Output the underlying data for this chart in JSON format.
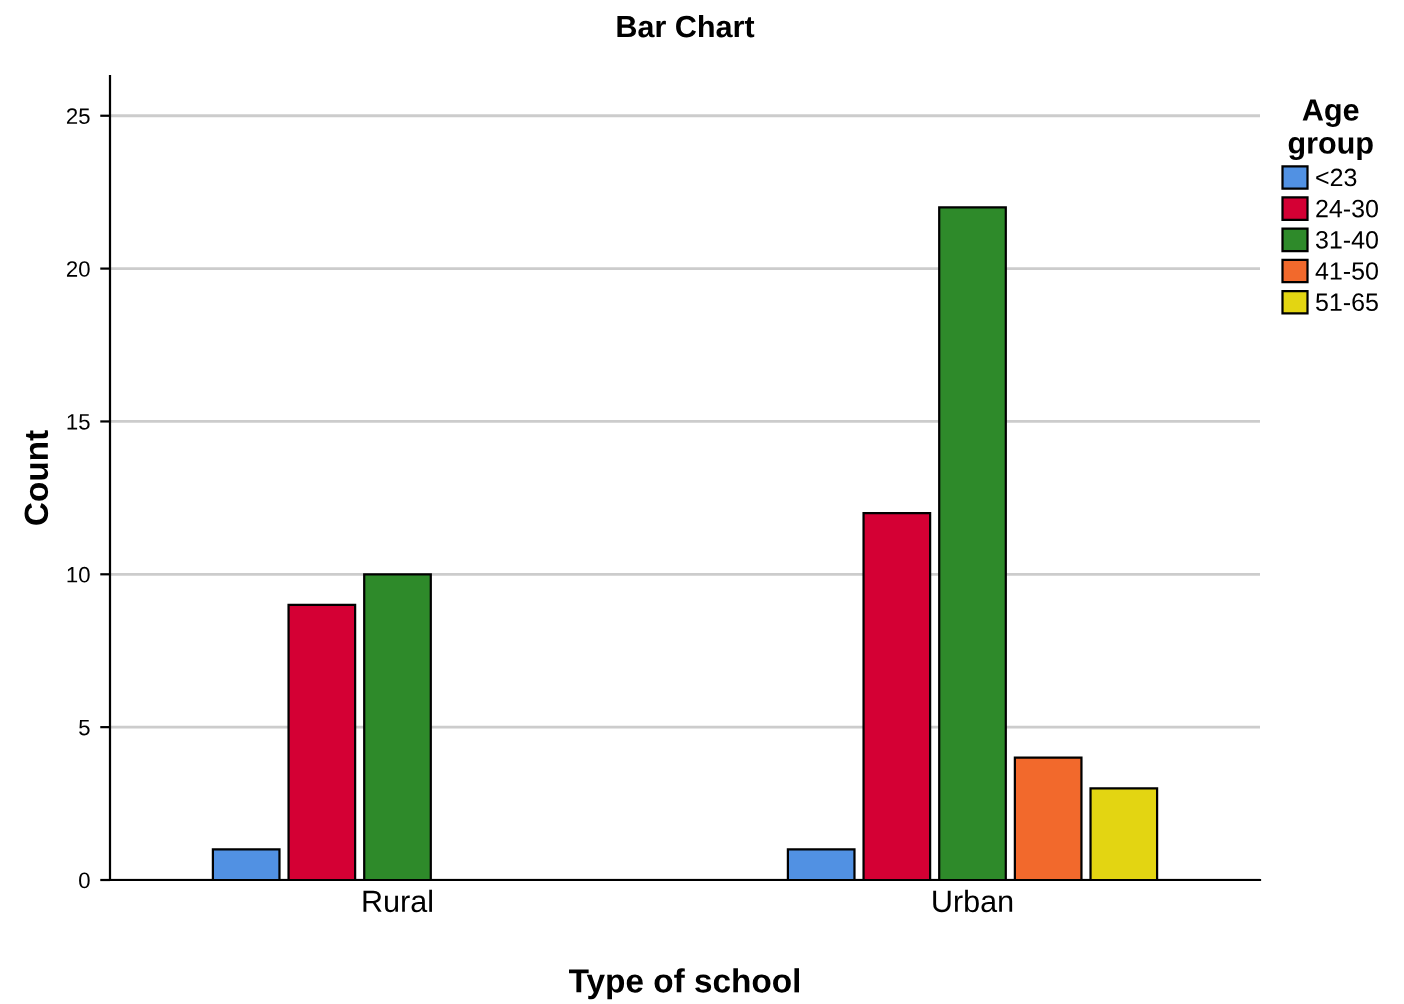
{
  "chart_data": {
    "type": "bar",
    "title": "Bar Chart",
    "xlabel": "Type of school",
    "ylabel": "Count",
    "legend_title": "Age group",
    "categories": [
      "Rural",
      "Urban"
    ],
    "series": [
      {
        "name": "<23",
        "color": "#5191e3",
        "values": [
          1,
          1
        ]
      },
      {
        "name": "24-30",
        "color": "#d40034",
        "values": [
          9,
          12
        ]
      },
      {
        "name": "31-40",
        "color": "#2e8a2a",
        "values": [
          10,
          22
        ]
      },
      {
        "name": "41-50",
        "color": "#f2692c",
        "values": [
          null,
          4
        ]
      },
      {
        "name": "51-65",
        "color": "#e3d512",
        "values": [
          null,
          3
        ]
      }
    ],
    "ylim": [
      0,
      26.3
    ],
    "yticks": [
      0,
      5,
      10,
      15,
      20,
      25
    ],
    "grid": "y",
    "legend": "top right"
  }
}
